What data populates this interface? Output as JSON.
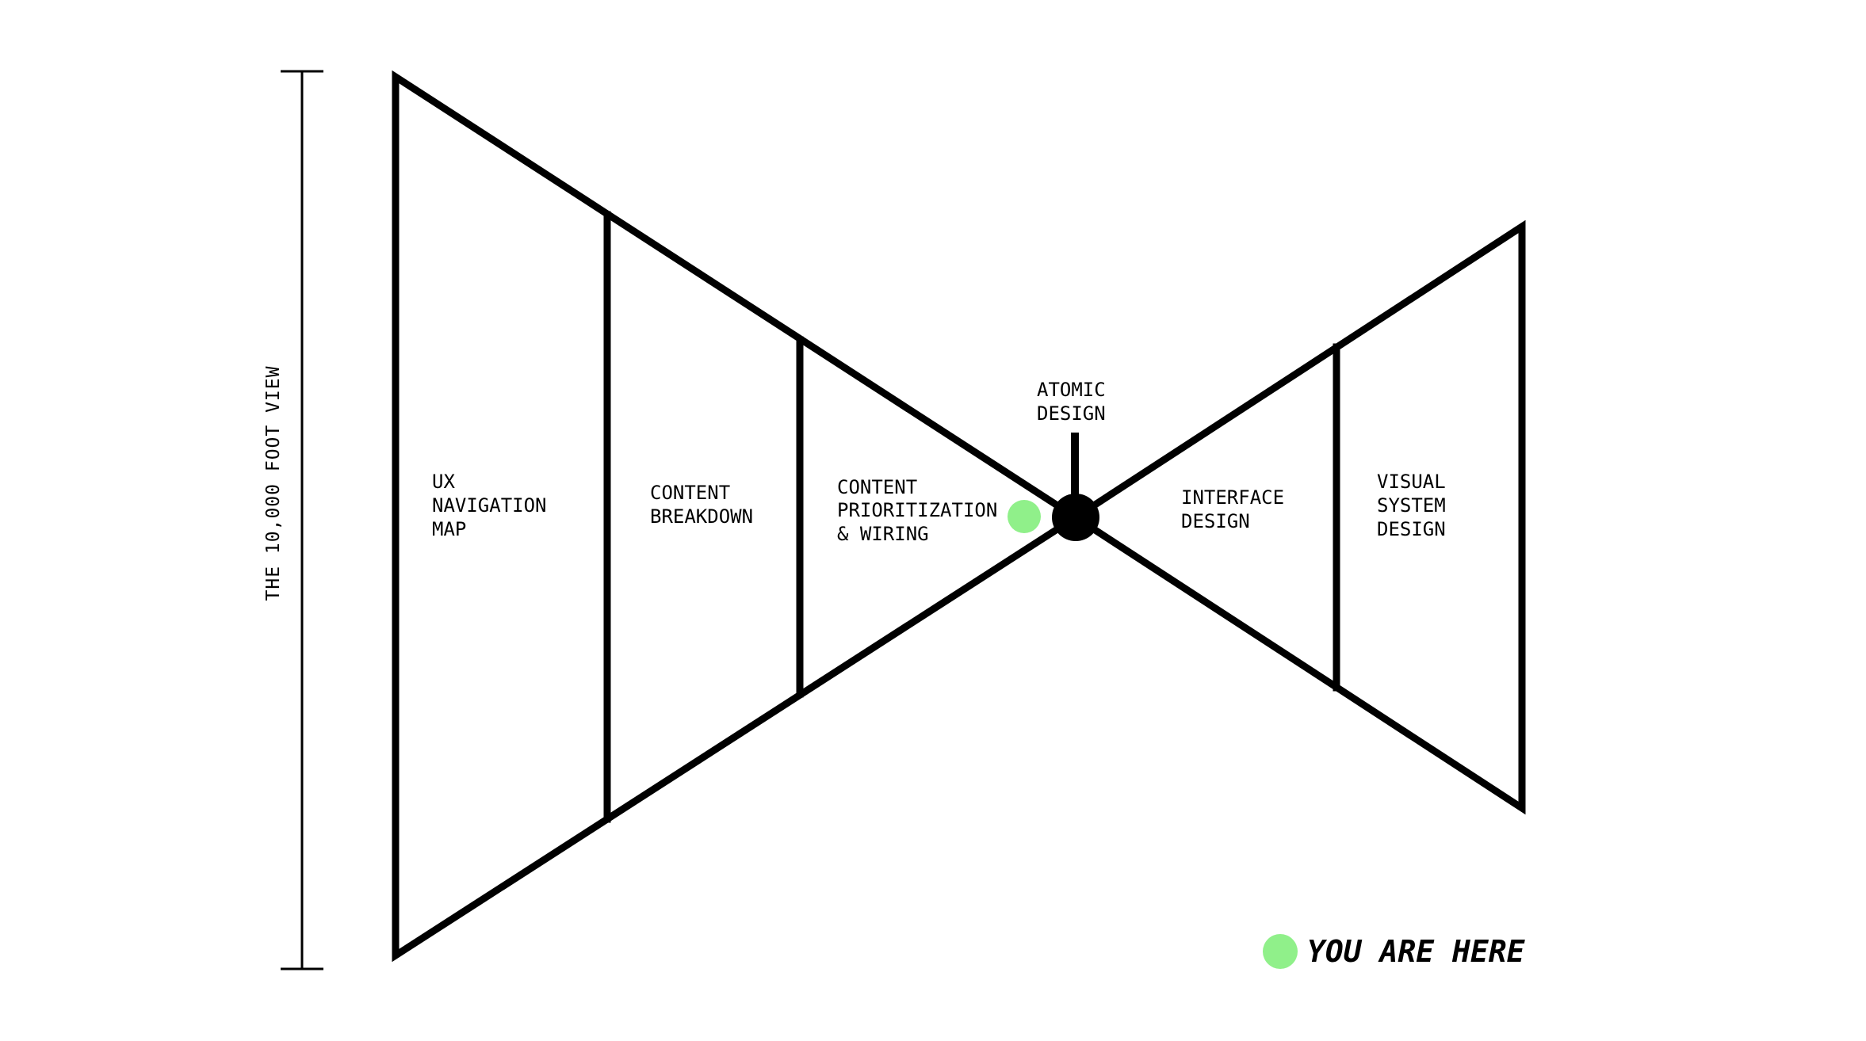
{
  "scale_label": "THE 10,000 FOOT VIEW",
  "stages": {
    "ux_navigation_map": [
      "UX",
      "NAVIGATION",
      "MAP"
    ],
    "content_breakdown": [
      "CONTENT",
      "BREAKDOWN"
    ],
    "content_prioritization": [
      "CONTENT",
      "PRIORITIZATION",
      "& WIRING"
    ],
    "atomic_design": [
      "ATOMIC",
      "DESIGN"
    ],
    "interface_design": [
      "INTERFACE",
      "DESIGN"
    ],
    "visual_system_design": [
      "VISUAL",
      "SYSTEM",
      "DESIGN"
    ]
  },
  "legend": {
    "label": "YOU ARE HERE"
  },
  "colors": {
    "line": "#000000",
    "marker": "#90f08a",
    "background": "#ffffff"
  }
}
